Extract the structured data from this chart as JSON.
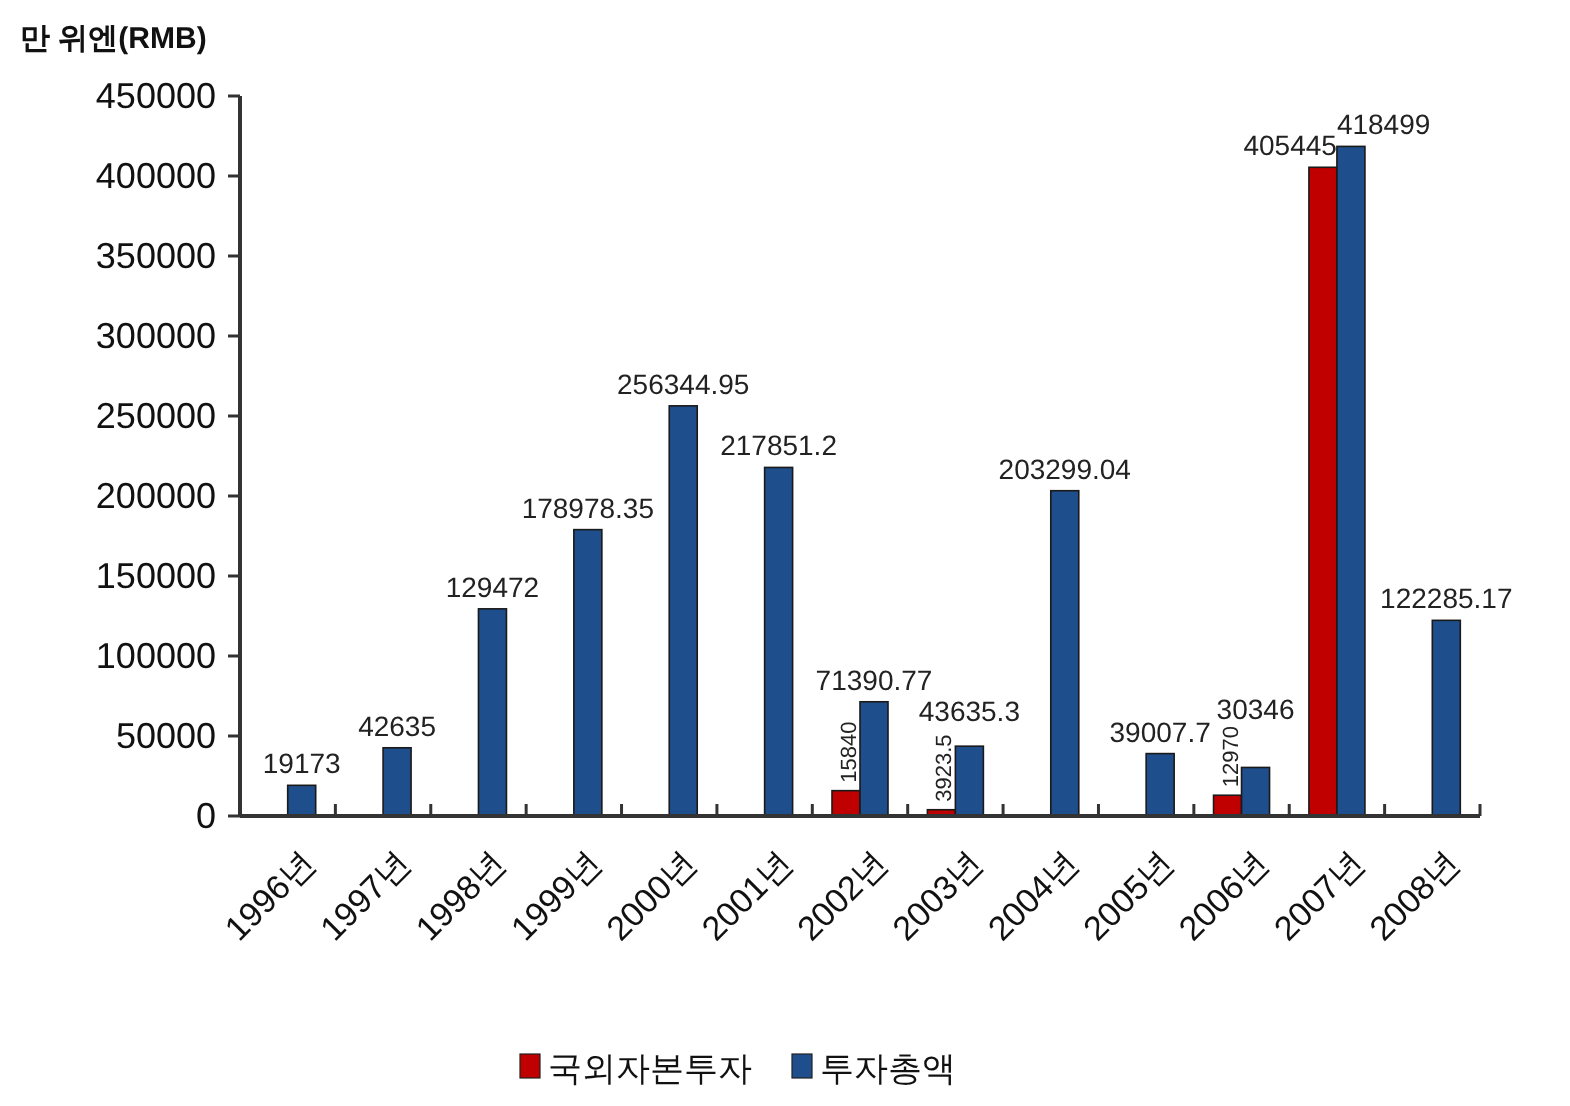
{
  "chart_data": {
    "type": "bar",
    "ylabel": "만 위엔(RMB)",
    "categories": [
      "1996년",
      "1997년",
      "1998년",
      "1999년",
      "2000년",
      "2001년",
      "2002년",
      "2003년",
      "2004년",
      "2005년",
      "2006년",
      "2007년",
      "2008년"
    ],
    "series": [
      {
        "name": "국외자본투자",
        "color": "#c00000",
        "values": [
          null,
          null,
          null,
          null,
          null,
          null,
          15840,
          3923.5,
          null,
          null,
          12970,
          405445,
          null
        ]
      },
      {
        "name": "투자총액",
        "color": "#1f4e8c",
        "values": [
          19173,
          42635,
          129472,
          178978.35,
          256344.95,
          217851.2,
          71390.77,
          43635.3,
          203299.04,
          39007.7,
          30346,
          418499,
          122285.17
        ]
      }
    ],
    "ylim": [
      0,
      450000
    ],
    "yticks": [
      0,
      50000,
      100000,
      150000,
      200000,
      250000,
      300000,
      350000,
      400000,
      450000
    ],
    "data_labels": true,
    "legend": "bottom"
  }
}
